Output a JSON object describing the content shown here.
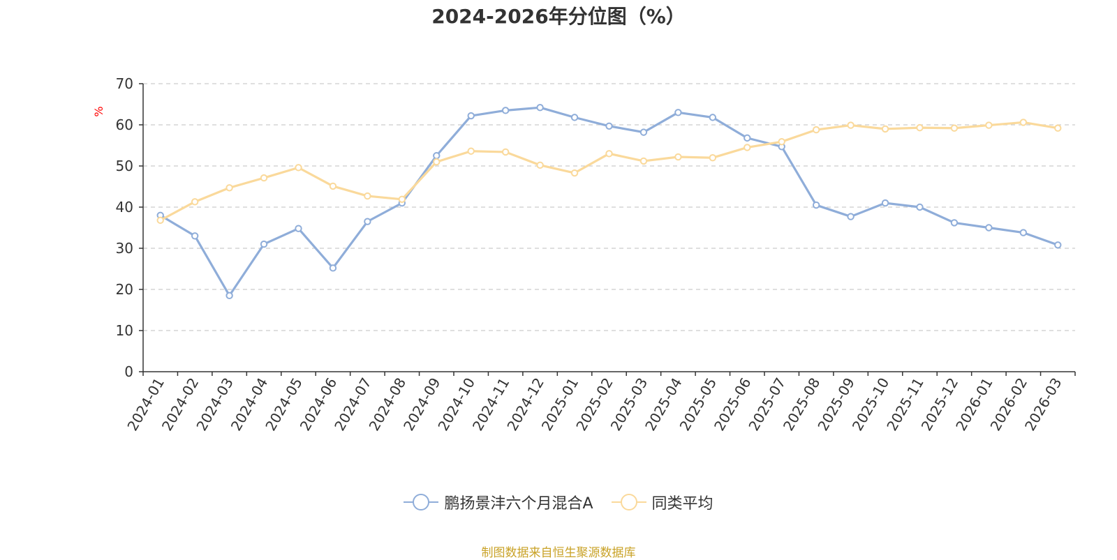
{
  "title": "2024-2026年分位图（%）",
  "source": "制图数据来自恒生聚源数据库",
  "colors": {
    "series_a": "#8FADD9",
    "series_b": "#FAD99B",
    "axis_unit": "#ff0000",
    "grid": "#cccccc",
    "source": "#c9a227"
  },
  "chart_data": {
    "type": "line",
    "title": "2024-2026年分位图（%）",
    "ylabel": "%",
    "xlabel": "",
    "ylim": [
      0,
      70
    ],
    "yticks": [
      0,
      10,
      20,
      30,
      40,
      50,
      60,
      70
    ],
    "grid": true,
    "legend_position": "bottom",
    "categories": [
      "2024-01",
      "2024-02",
      "2024-03",
      "2024-04",
      "2024-05",
      "2024-06",
      "2024-07",
      "2024-08",
      "2024-09",
      "2024-10",
      "2024-11",
      "2024-12",
      "2025-01",
      "2025-02",
      "2025-03",
      "2025-04",
      "2025-05",
      "2025-06",
      "2025-07",
      "2025-08",
      "2025-09",
      "2025-10",
      "2025-11",
      "2025-12",
      "2026-01",
      "2026-02",
      "2026-03"
    ],
    "series": [
      {
        "name": "鹏扬景沣六个月混合A",
        "color": "#8FADD9",
        "values": [
          38.0,
          33.0,
          18.5,
          31.0,
          34.8,
          25.2,
          36.5,
          41.0,
          52.5,
          62.2,
          63.5,
          64.2,
          61.8,
          59.7,
          58.2,
          63.0,
          61.8,
          56.8,
          54.7,
          40.5,
          37.7,
          41.0,
          40.0,
          36.2,
          35.0,
          33.8,
          30.8
        ]
      },
      {
        "name": "同类平均",
        "color": "#FAD99B",
        "values": [
          36.8,
          41.3,
          44.7,
          47.1,
          49.6,
          45.1,
          42.7,
          41.9,
          51.0,
          53.6,
          53.4,
          50.2,
          48.3,
          53.0,
          51.2,
          52.2,
          52.0,
          54.5,
          55.9,
          58.8,
          59.9,
          59.0,
          59.3,
          59.2,
          59.9,
          60.6,
          59.2
        ]
      }
    ]
  }
}
